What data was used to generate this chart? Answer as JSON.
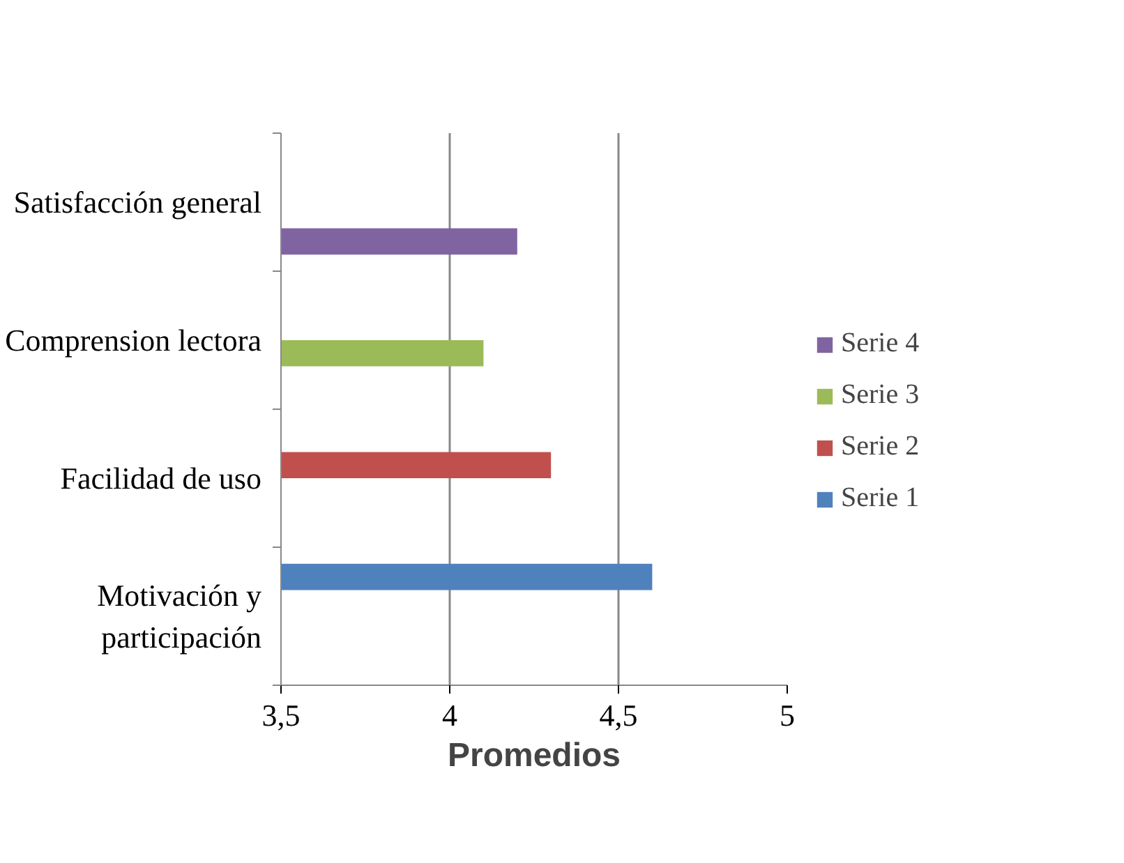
{
  "chart_data": {
    "type": "bar",
    "orientation": "horizontal",
    "xlabel": "Promedios",
    "categories": [
      "Satisfacción general",
      "Comprension lectora",
      "Facilidad de uso",
      "Motivación y participación"
    ],
    "series": [
      {
        "name": "Serie 1",
        "color": "#4f81bd",
        "values": [
          null,
          null,
          null,
          4.6
        ]
      },
      {
        "name": "Serie 2",
        "color": "#c0504d",
        "values": [
          null,
          null,
          4.3,
          null
        ]
      },
      {
        "name": "Serie 3",
        "color": "#9bbb59",
        "values": [
          null,
          4.1,
          null,
          null
        ]
      },
      {
        "name": "Serie 4",
        "color": "#8064a2",
        "values": [
          4.2,
          null,
          null,
          null
        ]
      }
    ],
    "xlim": [
      3.5,
      5
    ],
    "xticks": [
      {
        "value": 3.5,
        "label": "3,5"
      },
      4,
      {
        "value": 4.5,
        "label": "4,5"
      },
      5
    ],
    "grid": "x",
    "legend": "right"
  }
}
